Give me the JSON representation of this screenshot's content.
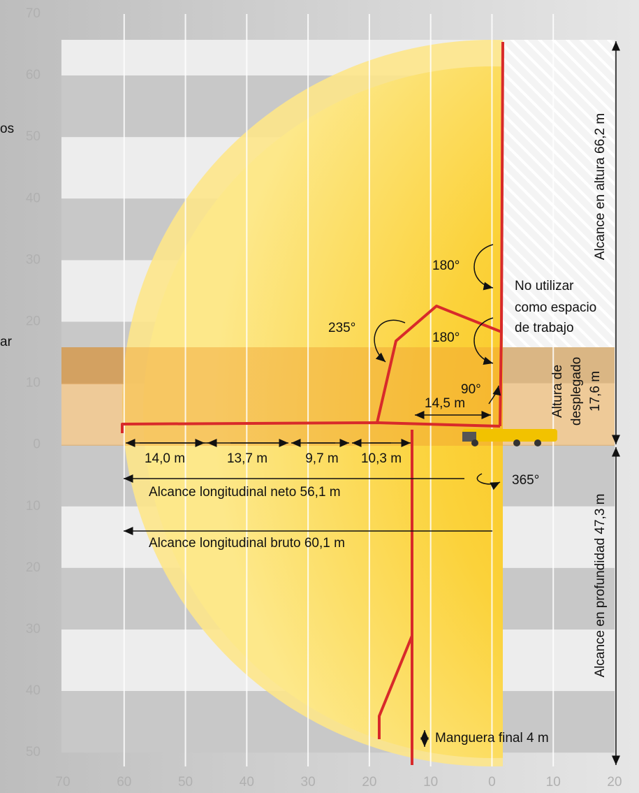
{
  "axes": {
    "x_labels": [
      70,
      60,
      50,
      40,
      30,
      20,
      10,
      0,
      10,
      20
    ],
    "y_labels": [
      70,
      60,
      50,
      40,
      30,
      20,
      10,
      0,
      10,
      20,
      30,
      40,
      50
    ]
  },
  "cropped": [
    "os",
    "ar"
  ],
  "height_reach": "Alcance en altura 66,2 m",
  "depth_reach": "Alcance en profundidad 47,3 m",
  "no_work_zone": [
    "No utilizar",
    "como espacio",
    "de trabajo"
  ],
  "angles": {
    "upper_180": "180°",
    "lower_180": "180°",
    "a235": "235°",
    "a90": "90°",
    "a365": "365°"
  },
  "offset": "14,5 m",
  "unfold_height": [
    "Altura de",
    "desplegado",
    "17,6 m"
  ],
  "sections": [
    "14,0 m",
    "13,7 m",
    "9,7 m",
    "10,3 m"
  ],
  "net_reach": "Alcance longitudinal neto 56,1 m",
  "gross_reach": "Alcance longitudinal bruto 60,1 m",
  "end_hose": "Manguera final 4 m"
}
